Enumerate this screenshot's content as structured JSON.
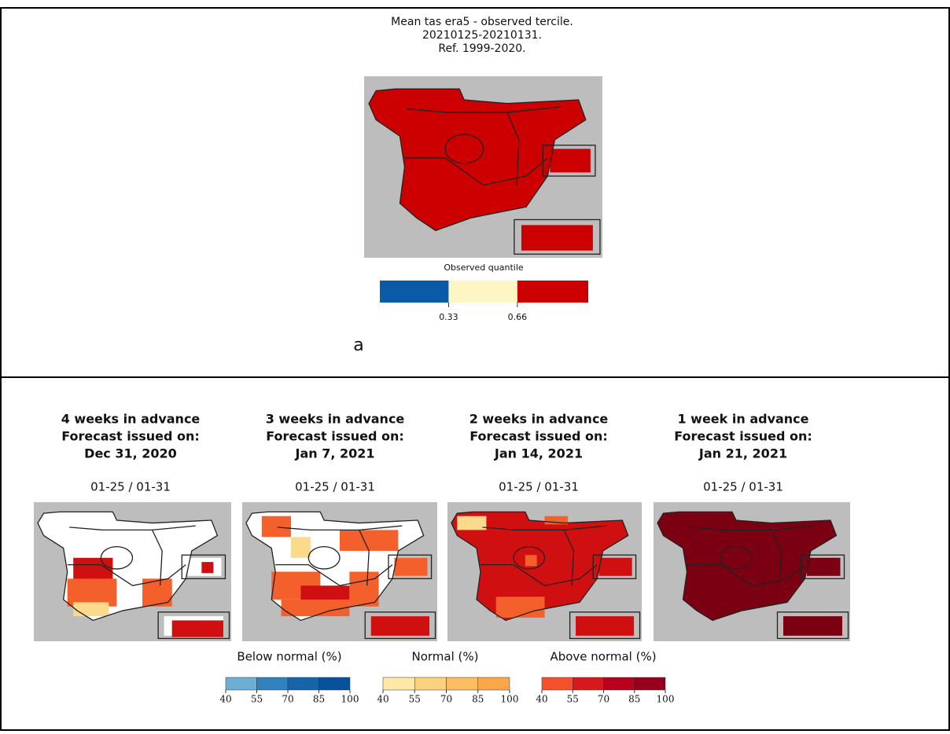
{
  "observed": {
    "title_lines": [
      "Mean tas era5 - observed tercile.",
      "20210125-20210131.",
      "Ref. 1999-2020."
    ],
    "colorbar_label": "Observed quantile",
    "colorbar_ticks": [
      0.33,
      0.66
    ],
    "panel_label": "a"
  },
  "forecasts": [
    {
      "lines": [
        "4 weeks in advance",
        "Forecast issued on:",
        "Dec 31, 2020"
      ],
      "period": "01-25 / 01-31"
    },
    {
      "lines": [
        "3 weeks in advance",
        "Forecast issued on:",
        "Jan 7, 2021"
      ],
      "period": "01-25 / 01-31"
    },
    {
      "lines": [
        "2 weeks in advance",
        "Forecast issued on:",
        "Jan 14, 2021"
      ],
      "period": "01-25 / 01-31"
    },
    {
      "lines": [
        "1 week in advance",
        "Forecast issued on:",
        "Jan 21, 2021"
      ],
      "period": "01-25 / 01-31"
    }
  ],
  "legend": [
    {
      "label": "Below normal (%)",
      "ticks": [
        40,
        55,
        70,
        85,
        100
      ]
    },
    {
      "label": "Normal (%)",
      "ticks": [
        40,
        55,
        70,
        85,
        100
      ]
    },
    {
      "label": "Above normal (%)",
      "ticks": [
        40,
        55,
        70,
        85,
        100
      ]
    }
  ]
}
